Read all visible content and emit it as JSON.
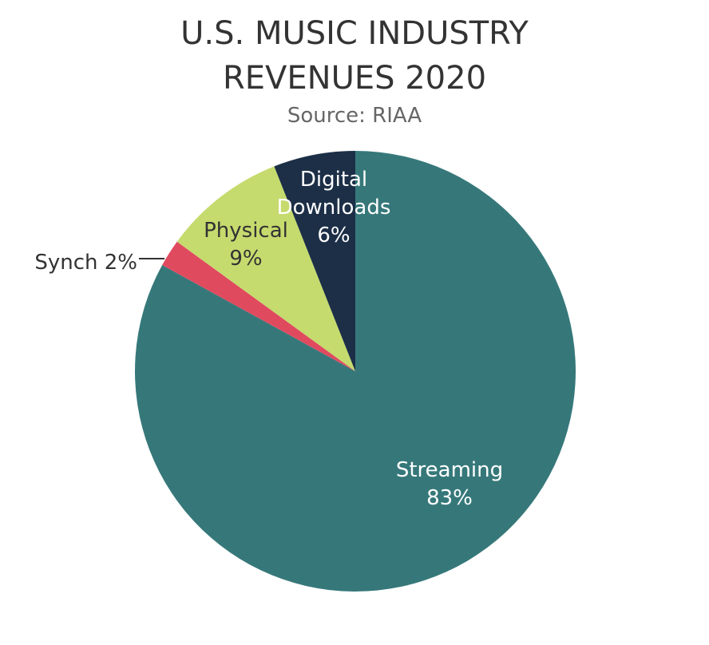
{
  "chart_data": {
    "type": "pie",
    "title": "U.S. MUSIC INDUSTRY REVENUES 2020",
    "subtitle": "Source: RIAA",
    "categories": [
      "Streaming",
      "Synch",
      "Physical",
      "Digital Downloads"
    ],
    "values": [
      83,
      2,
      9,
      6
    ],
    "value_labels": [
      "83%",
      "2%",
      "9%",
      "6%"
    ],
    "colors": [
      "#36787a",
      "#e04a5f",
      "#c5db6e",
      "#1c2f47"
    ]
  }
}
